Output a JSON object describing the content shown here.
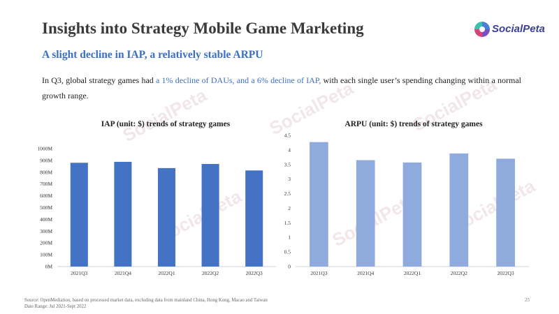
{
  "header": {
    "title": "Insights into Strategy Mobile Game Marketing",
    "logo_text": "SocialPeta",
    "subtitle": "A slight decline in IAP, a relatively stable ARPU"
  },
  "paragraph": {
    "before": "In Q3, global strategy games had ",
    "highlight": "a 1% decline of DAUs, and a 6% decline of IAP,",
    "after": " with each single user’s spending changing within a normal growth range."
  },
  "footer": {
    "source": "Source: OpenMediation, based on processed market data, excluding data from mainland China, Hong Kong, Macao and Taiwan",
    "date_range": "Date Range: Jul 2021-Sept 2022",
    "page_number": "25"
  },
  "colors": {
    "iap_bar": "#4472c4",
    "arpu_bar": "#8faadc",
    "accent": "#3c6fc0"
  },
  "chart_data": [
    {
      "type": "bar",
      "title": "IAP (unit: $) trends of strategy games",
      "categories": [
        "2021Q3",
        "2021Q4",
        "2022Q1",
        "2022Q2",
        "2022Q3"
      ],
      "values": [
        880000000,
        888000000,
        835000000,
        870000000,
        815000000
      ],
      "ylim": [
        0,
        1000000000
      ],
      "yticks": [
        "0M",
        "100M",
        "200M",
        "300M",
        "400M",
        "500M",
        "600M",
        "700M",
        "800M",
        "900M",
        "1000M"
      ],
      "grid": false,
      "legend": "none"
    },
    {
      "type": "bar",
      "title": "ARPU (unit: $) trends of strategy games",
      "categories": [
        "2021Q3",
        "2021Q4",
        "2022Q1",
        "2022Q2",
        "2022Q3"
      ],
      "values": [
        4.27,
        3.65,
        3.57,
        3.88,
        3.7
      ],
      "ylim": [
        0,
        4.5
      ],
      "yticks": [
        "0",
        "0.5",
        "1",
        "1.5",
        "2",
        "2.5",
        "3",
        "3.5",
        "4",
        "4.5"
      ],
      "grid": false,
      "legend": "none"
    }
  ]
}
